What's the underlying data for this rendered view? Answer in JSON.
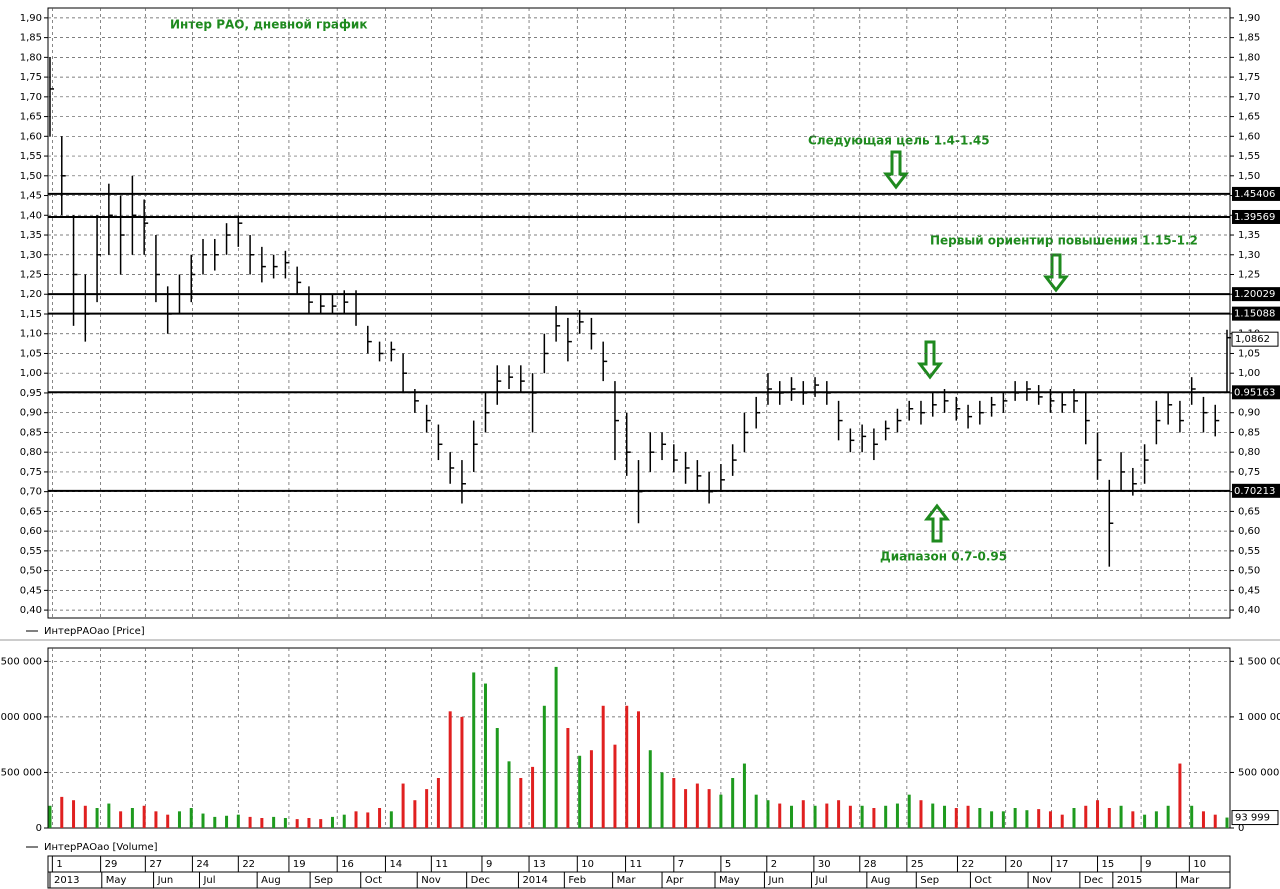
{
  "chart_data": [
    {
      "type": "ohlc",
      "title": "Интер РАО, дневной график",
      "annotations": [
        "Следующая цель 1.4-1.45",
        "Первый ориентир повышения 1.15-1.2",
        "Диапазон 0.7-0.95"
      ],
      "ylim": [
        0.38,
        1.925
      ],
      "yticks": [
        {
          "value": 1.9,
          "label": "1,90"
        },
        {
          "value": 1.85,
          "label": "1,85"
        },
        {
          "value": 1.8,
          "label": "1,80"
        },
        {
          "value": 1.75,
          "label": "1,75"
        },
        {
          "value": 1.7,
          "label": "1,70"
        },
        {
          "value": 1.65,
          "label": "1,65"
        },
        {
          "value": 1.6,
          "label": "1,60"
        },
        {
          "value": 1.55,
          "label": "1,55"
        },
        {
          "value": 1.5,
          "label": "1,50"
        },
        {
          "value": 1.45,
          "label": "1,45"
        },
        {
          "value": 1.4,
          "label": "1,40"
        },
        {
          "value": 1.35,
          "label": "1,35"
        },
        {
          "value": 1.3,
          "label": "1,30"
        },
        {
          "value": 1.25,
          "label": "1,25"
        },
        {
          "value": 1.2,
          "label": "1,20"
        },
        {
          "value": 1.15,
          "label": "1,15"
        },
        {
          "value": 1.1,
          "label": "1,10"
        },
        {
          "value": 1.05,
          "label": "1,05"
        },
        {
          "value": 1.0,
          "label": "1,00"
        },
        {
          "value": 0.95,
          "label": "0,95"
        },
        {
          "value": 0.9,
          "label": "0,90"
        },
        {
          "value": 0.85,
          "label": "0,85"
        },
        {
          "value": 0.8,
          "label": "0,80"
        },
        {
          "value": 0.75,
          "label": "0,75"
        },
        {
          "value": 0.7,
          "label": "0,70"
        },
        {
          "value": 0.65,
          "label": "0,65"
        },
        {
          "value": 0.6,
          "label": "0,60"
        },
        {
          "value": 0.55,
          "label": "0,55"
        },
        {
          "value": 0.5,
          "label": "0,50"
        },
        {
          "value": 0.45,
          "label": "0,45"
        },
        {
          "value": 0.4,
          "label": "0,40"
        }
      ],
      "grid": true,
      "levels": [
        {
          "value": 1.45406,
          "label": "1.45406"
        },
        {
          "value": 1.39569,
          "label": "1.39569"
        },
        {
          "value": 1.20029,
          "label": "1.20029"
        },
        {
          "value": 1.15088,
          "label": "1.15088"
        },
        {
          "value": 0.95163,
          "label": "0.95163"
        },
        {
          "value": 0.70213,
          "label": "0.70213"
        }
      ],
      "last_price": {
        "value": 1.0862,
        "label": "1,0862"
      },
      "series": [
        {
          "name": "ИнтерРАОао [Price]",
          "color": "#000000",
          "high": [
            1.8,
            1.6,
            1.4,
            1.25,
            1.4,
            1.48,
            1.45,
            1.5,
            1.44,
            1.35,
            1.22,
            1.25,
            1.3,
            1.34,
            1.34,
            1.38,
            1.4,
            1.35,
            1.32,
            1.3,
            1.31,
            1.27,
            1.22,
            1.2,
            1.2,
            1.21,
            1.21,
            1.12,
            1.08,
            1.08,
            1.05,
            0.96,
            0.92,
            0.87,
            0.8,
            0.78,
            0.88,
            0.95,
            1.02,
            1.02,
            1.02,
            1.0,
            1.1,
            1.17,
            1.14,
            1.16,
            1.14,
            1.08,
            0.98,
            0.9,
            0.78,
            0.85,
            0.85,
            0.82,
            0.8,
            0.78,
            0.75,
            0.77,
            0.82,
            0.9,
            0.94,
            1.0,
            0.98,
            0.99,
            0.98,
            0.99,
            0.98,
            0.93,
            0.86,
            0.87,
            0.86,
            0.88,
            0.91,
            0.93,
            0.93,
            0.95,
            0.96,
            0.94,
            0.92,
            0.93,
            0.94,
            0.95,
            0.98,
            0.98,
            0.97,
            0.96,
            0.95,
            0.96,
            0.95,
            0.85,
            0.73,
            0.8,
            0.76,
            0.82,
            0.93,
            0.95,
            0.93,
            0.99,
            0.94,
            0.92,
            1.11
          ],
          "low": [
            1.6,
            1.4,
            1.12,
            1.08,
            1.18,
            1.3,
            1.25,
            1.3,
            1.3,
            1.18,
            1.1,
            1.15,
            1.18,
            1.25,
            1.26,
            1.3,
            1.32,
            1.25,
            1.23,
            1.24,
            1.24,
            1.2,
            1.15,
            1.15,
            1.15,
            1.15,
            1.12,
            1.05,
            1.03,
            1.03,
            0.95,
            0.9,
            0.85,
            0.78,
            0.72,
            0.67,
            0.75,
            0.85,
            0.92,
            0.96,
            0.95,
            0.85,
            1.0,
            1.08,
            1.03,
            1.1,
            1.06,
            0.98,
            0.78,
            0.74,
            0.62,
            0.75,
            0.78,
            0.75,
            0.72,
            0.7,
            0.67,
            0.7,
            0.74,
            0.8,
            0.86,
            0.92,
            0.92,
            0.93,
            0.92,
            0.94,
            0.92,
            0.83,
            0.8,
            0.8,
            0.78,
            0.83,
            0.85,
            0.88,
            0.87,
            0.89,
            0.9,
            0.88,
            0.86,
            0.87,
            0.89,
            0.9,
            0.93,
            0.93,
            0.92,
            0.9,
            0.9,
            0.9,
            0.82,
            0.73,
            0.51,
            0.7,
            0.69,
            0.72,
            0.82,
            0.87,
            0.85,
            0.92,
            0.85,
            0.84,
            0.95
          ],
          "close": [
            1.72,
            1.5,
            1.25,
            1.15,
            1.3,
            1.4,
            1.35,
            1.4,
            1.38,
            1.25,
            1.15,
            1.2,
            1.25,
            1.3,
            1.3,
            1.35,
            1.38,
            1.3,
            1.27,
            1.27,
            1.28,
            1.23,
            1.18,
            1.17,
            1.17,
            1.18,
            1.15,
            1.08,
            1.05,
            1.06,
            1.0,
            0.93,
            0.88,
            0.82,
            0.76,
            0.72,
            0.82,
            0.9,
            0.98,
            0.99,
            0.98,
            0.95,
            1.05,
            1.12,
            1.08,
            1.13,
            1.1,
            1.03,
            0.88,
            0.8,
            0.7,
            0.8,
            0.82,
            0.78,
            0.76,
            0.74,
            0.7,
            0.73,
            0.78,
            0.85,
            0.9,
            0.96,
            0.95,
            0.96,
            0.95,
            0.97,
            0.95,
            0.88,
            0.83,
            0.84,
            0.82,
            0.86,
            0.88,
            0.91,
            0.9,
            0.92,
            0.93,
            0.91,
            0.89,
            0.9,
            0.92,
            0.93,
            0.95,
            0.96,
            0.94,
            0.93,
            0.92,
            0.93,
            0.88,
            0.78,
            0.62,
            0.75,
            0.72,
            0.78,
            0.88,
            0.92,
            0.88,
            0.96,
            0.9,
            0.88,
            1.09
          ]
        }
      ]
    },
    {
      "type": "bar",
      "ylim": [
        0,
        1620000
      ],
      "yticks": [
        {
          "value": 1500000,
          "label": "1 500 000"
        },
        {
          "value": 1000000,
          "label": "1 000 000"
        },
        {
          "value": 500000,
          "label": "500 000"
        },
        0
      ],
      "xlim": [
        0,
        100
      ],
      "xticks": [
        {
          "value": 0.2,
          "label": "1"
        },
        {
          "value": 4.3,
          "label": "29"
        },
        {
          "value": 8.1,
          "label": "27"
        },
        {
          "value": 12.1,
          "label": "24"
        },
        {
          "value": 16.0,
          "label": "22"
        },
        {
          "value": 20.3,
          "label": "19"
        },
        {
          "value": 24.4,
          "label": "16"
        },
        {
          "value": 28.5,
          "label": "14"
        },
        {
          "value": 32.4,
          "label": "11"
        },
        {
          "value": 36.7,
          "label": "9"
        },
        {
          "value": 40.7,
          "label": "13"
        },
        {
          "value": 44.8,
          "label": "10"
        },
        {
          "value": 48.9,
          "label": "11"
        },
        {
          "value": 53.0,
          "label": "7"
        },
        {
          "value": 57.0,
          "label": "5"
        },
        {
          "value": 60.9,
          "label": "2"
        },
        {
          "value": 64.9,
          "label": "30"
        },
        {
          "value": 68.8,
          "label": "28"
        },
        {
          "value": 72.8,
          "label": "25"
        },
        {
          "value": 77.1,
          "label": "22"
        },
        {
          "value": 81.2,
          "label": "20"
        },
        {
          "value": 85.1,
          "label": "17"
        },
        {
          "value": 89.0,
          "label": "15"
        },
        {
          "value": 92.7,
          "label": "9"
        },
        {
          "value": 96.8,
          "label": "10"
        }
      ],
      "month_ticks": [
        {
          "value": 0,
          "label": "2013"
        },
        {
          "value": 4.4,
          "label": "May"
        },
        {
          "value": 8.8,
          "label": "Jun"
        },
        {
          "value": 12.7,
          "label": "Jul"
        },
        {
          "value": 17.6,
          "label": "Aug"
        },
        {
          "value": 22.1,
          "label": "Sep"
        },
        {
          "value": 26.4,
          "label": "Oct"
        },
        {
          "value": 31.2,
          "label": "Nov"
        },
        {
          "value": 35.4,
          "label": "Dec"
        },
        {
          "value": 39.8,
          "label": "2014"
        },
        {
          "value": 43.7,
          "label": "Feb"
        },
        {
          "value": 47.8,
          "label": "Mar"
        },
        {
          "value": 52.0,
          "label": "Apr"
        },
        {
          "value": 56.5,
          "label": "May"
        },
        {
          "value": 60.7,
          "label": "Jun"
        },
        {
          "value": 64.7,
          "label": "Jul"
        },
        {
          "value": 69.4,
          "label": "Aug"
        },
        {
          "value": 73.6,
          "label": "Sep"
        },
        {
          "value": 78.2,
          "label": "Oct"
        },
        {
          "value": 83.1,
          "label": "Nov"
        },
        {
          "value": 87.5,
          "label": "Dec"
        },
        {
          "value": 90.3,
          "label": "2015"
        },
        {
          "value": 95.7,
          "label": "Mar"
        }
      ],
      "grid": true,
      "series": [
        {
          "name": "ИнтерРАОао [Volume]",
          "up_color": "#1e9a1e",
          "down_color": "#e02020",
          "values": [
            200000,
            280000,
            250000,
            200000,
            180000,
            220000,
            150000,
            180000,
            200000,
            150000,
            120000,
            150000,
            180000,
            130000,
            100000,
            110000,
            120000,
            100000,
            90000,
            100000,
            90000,
            80000,
            90000,
            80000,
            100000,
            120000,
            150000,
            140000,
            180000,
            150000,
            400000,
            250000,
            350000,
            450000,
            1050000,
            1000000,
            1400000,
            1300000,
            900000,
            600000,
            450000,
            550000,
            1100000,
            1450000,
            900000,
            650000,
            700000,
            1100000,
            750000,
            1100000,
            1050000,
            700000,
            500000,
            450000,
            350000,
            400000,
            350000,
            300000,
            450000,
            580000,
            300000,
            250000,
            220000,
            200000,
            250000,
            200000,
            220000,
            250000,
            200000,
            200000,
            180000,
            200000,
            220000,
            300000,
            250000,
            220000,
            200000,
            180000,
            200000,
            180000,
            150000,
            150000,
            180000,
            160000,
            170000,
            150000,
            120000,
            180000,
            200000,
            250000,
            180000,
            200000,
            150000,
            120000,
            150000,
            200000,
            580000,
            200000,
            150000,
            120000,
            93999
          ],
          "last_value_label": "93 999"
        }
      ]
    }
  ]
}
